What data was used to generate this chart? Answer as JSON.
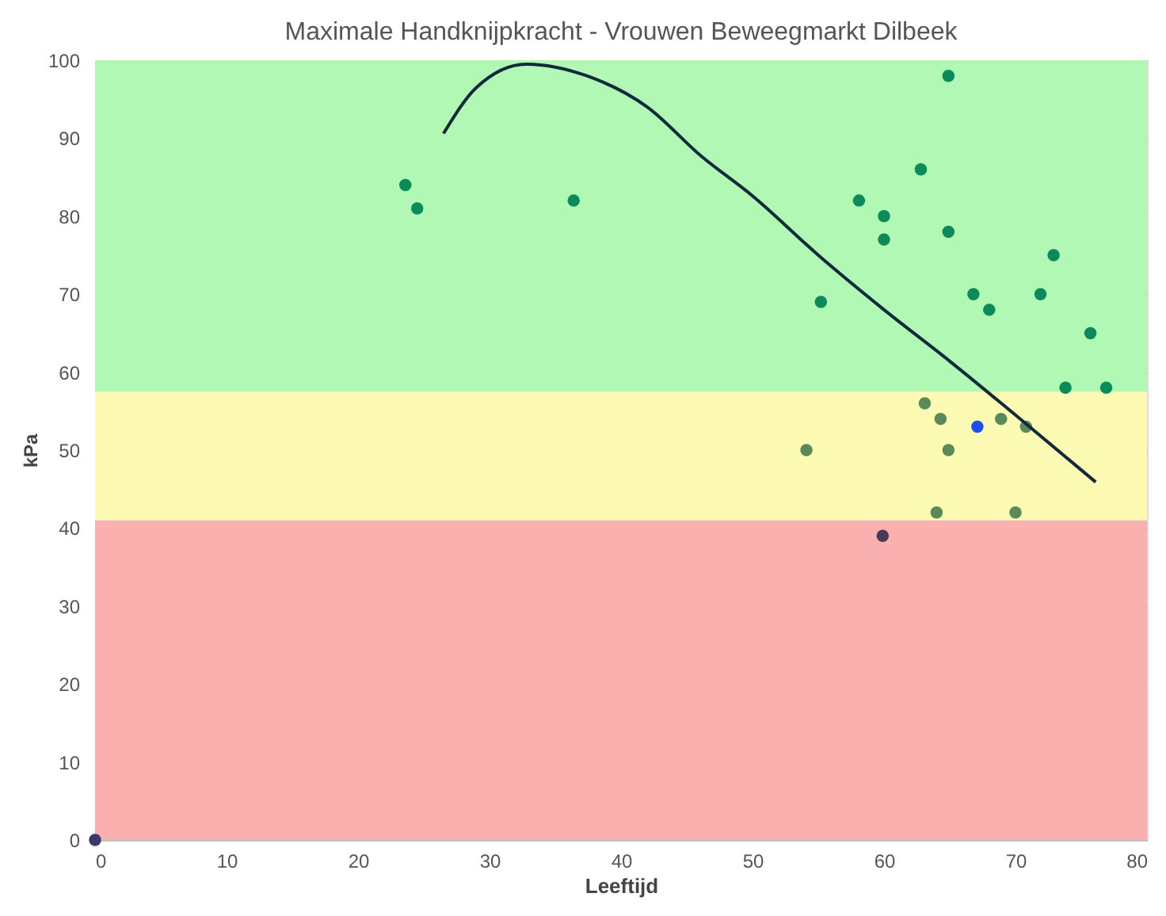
{
  "chart_data": {
    "type": "scatter",
    "title": "Maximale Handknijpkracht - Vrouwen Beweegmarkt Dilbeek",
    "xlabel": "Leeftijd",
    "ylabel": "kPa",
    "xlim": [
      0,
      80
    ],
    "xticks": [
      0,
      10,
      20,
      30,
      40,
      50,
      60,
      70,
      80
    ],
    "ylim": [
      0,
      100
    ],
    "yticks": [
      0,
      10,
      20,
      30,
      40,
      50,
      60,
      70,
      80,
      90,
      100
    ],
    "grid": "y",
    "bands": [
      {
        "axis": "y",
        "from": 0,
        "to": 41,
        "color": "#fbb0b0"
      },
      {
        "axis": "y",
        "from": 41,
        "to": 57.5,
        "color": "#fdfab4"
      },
      {
        "axis": "y",
        "from": 57.5,
        "to": 100,
        "color": "#b0f8b4"
      }
    ],
    "series": [
      {
        "marker": "circle",
        "x": [
          0,
          23.6,
          24.5,
          36.4,
          54.1,
          55.2,
          58.1,
          60,
          60,
          62.8,
          64.9,
          64.9,
          66.8,
          68,
          59.9,
          67.1,
          63.1,
          64.3,
          64.9,
          64,
          70,
          70.8,
          68.9,
          72.9,
          71.9,
          75.7,
          73.8,
          76.9
        ],
        "values": [
          0,
          84,
          81,
          82,
          50,
          69,
          82,
          80,
          77,
          86,
          98,
          78,
          70,
          68,
          39,
          53,
          56,
          54,
          50,
          42,
          42,
          53,
          54,
          75,
          70,
          65,
          58,
          58
        ],
        "colors": [
          "#3a3a6a",
          "#0b8a5a",
          "#0b8a5a",
          "#0b8a5a",
          "#5a8a5a",
          "#0b8a5a",
          "#0b8a5a",
          "#0b8a5a",
          "#0b8a5a",
          "#0b8a5a",
          "#0b8a5a",
          "#0b8a5a",
          "#0b8a5a",
          "#0b8a5a",
          "#4a3a5a",
          "#1a4ff0",
          "#5a8a5a",
          "#5a8a5a",
          "#5a8a5a",
          "#5a8a5a",
          "#5a8a5a",
          "#5a8a5a",
          "#5a8a5a",
          "#0b8a5a",
          "#0b8a5a",
          "#0b8a5a",
          "#0b8a5a",
          "#0b8a5a"
        ]
      },
      {
        "type": "line",
        "color": "#0f2a3a",
        "x": [
          26.5,
          29,
          32.8,
          37.4,
          42,
          46.1,
          50,
          55,
          60,
          65,
          70,
          76.1
        ],
        "values": [
          90.6,
          96.5,
          99.5,
          98,
          94,
          87.7,
          82.6,
          75,
          68,
          61.4,
          54.5,
          45.9
        ]
      }
    ]
  }
}
